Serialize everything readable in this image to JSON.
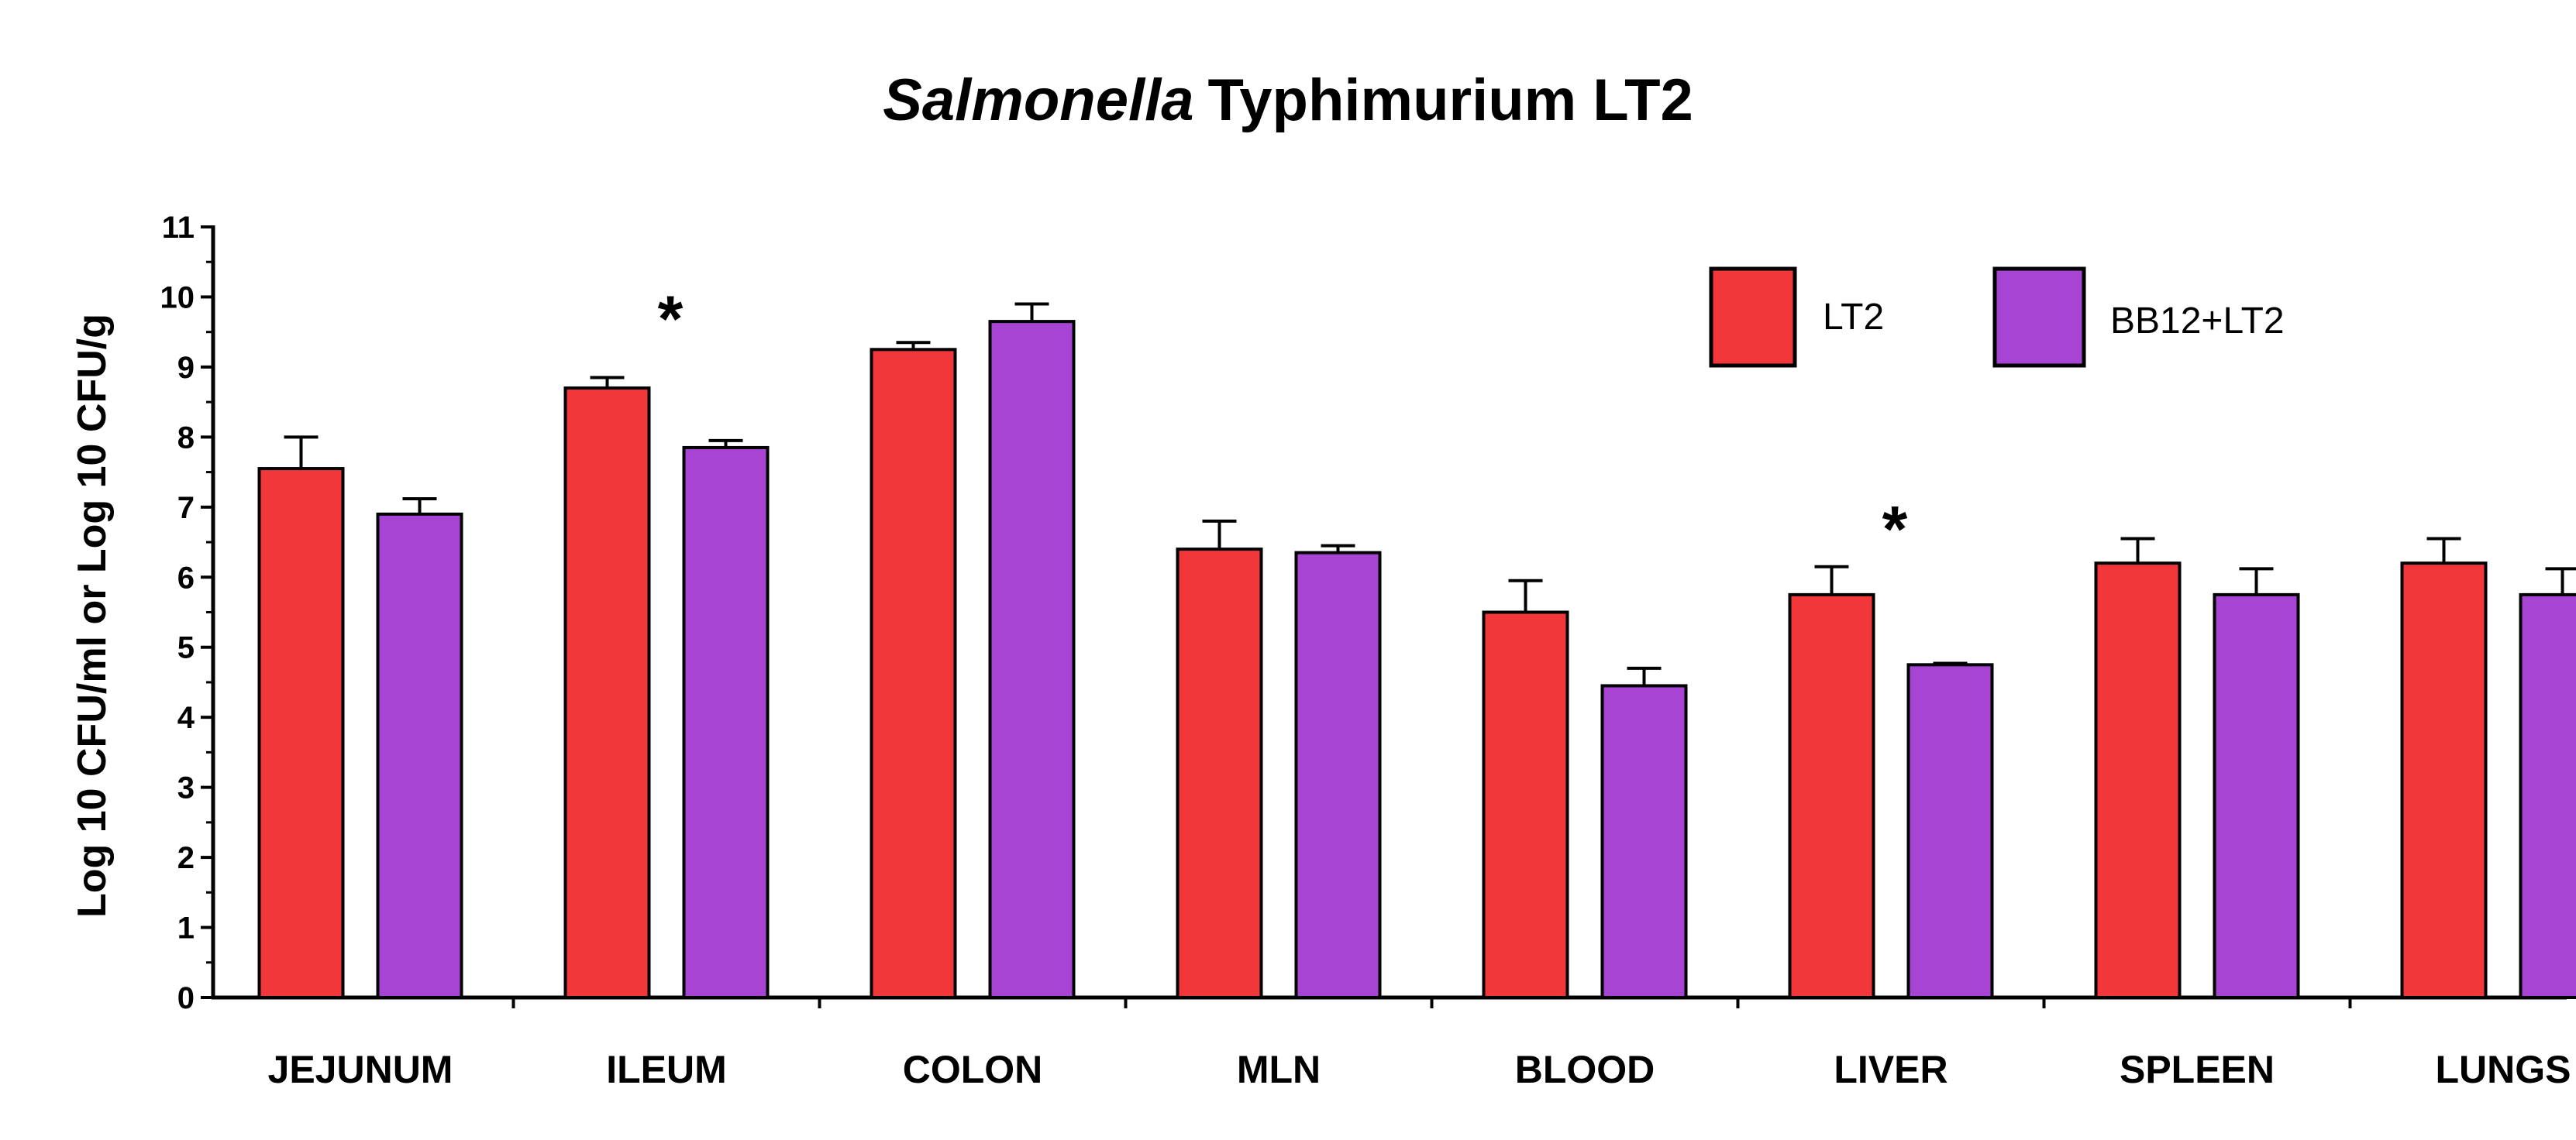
{
  "chart_data": {
    "type": "bar",
    "title_italic": "Salmonella",
    "title_rest": "Typhimurium LT2",
    "xlabel": "",
    "ylabel": "Log 10 CFU/ml or Log 10 CFU/g",
    "ylim": [
      0,
      11
    ],
    "yticks": [
      0,
      1,
      2,
      3,
      4,
      5,
      6,
      7,
      8,
      9,
      10,
      11
    ],
    "legend_position": "top-right",
    "categories": [
      "JEJUNUM",
      "ILEUM",
      "COLON",
      "MLN",
      "BLOOD",
      "LIVER",
      "SPLEEN",
      "LUNGS"
    ],
    "series": [
      {
        "name": "LT2",
        "color": "#f2373b",
        "values": [
          7.55,
          8.7,
          9.25,
          6.4,
          5.5,
          5.75,
          6.2,
          6.2
        ],
        "errors": [
          0.45,
          0.15,
          0.1,
          0.4,
          0.45,
          0.4,
          0.35,
          0.35
        ]
      },
      {
        "name": "BB12+LT2",
        "color": "#a844d4",
        "values": [
          6.9,
          7.85,
          9.65,
          6.35,
          4.45,
          4.75,
          5.75,
          5.75
        ],
        "errors": [
          0.22,
          0.1,
          0.25,
          0.1,
          0.25,
          0.02,
          0.37,
          0.37
        ]
      }
    ],
    "annotations": [
      {
        "text": "*",
        "category": "ILEUM",
        "y": 9.9
      },
      {
        "text": "*",
        "category": "LIVER",
        "y": 6.9
      }
    ]
  }
}
